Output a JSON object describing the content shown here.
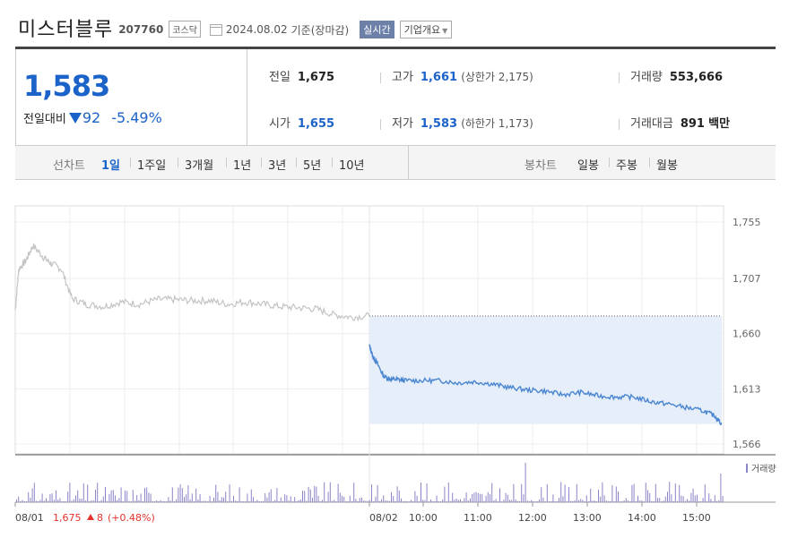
{
  "header": {
    "name": "미스터블루",
    "code": "207760",
    "market": "코스닥",
    "date": "2024.08.02",
    "basis": "기준(장마감)",
    "live_label": "실시간",
    "info_label": "기업개요"
  },
  "price": {
    "current": "1,583",
    "compare_label": "전일대비",
    "change": "92",
    "change_pct": "-5.49%"
  },
  "stats": {
    "prev": {
      "label": "전일",
      "value": "1,675"
    },
    "high": {
      "label": "고가",
      "value": "1,661",
      "sub": "(상한가 2,175)"
    },
    "volume": {
      "label": "거래량",
      "value": "553,666"
    },
    "open": {
      "label": "시가",
      "value": "1,655"
    },
    "low": {
      "label": "저가",
      "value": "1,583",
      "sub": "(하한가 1,173)"
    },
    "amount": {
      "label": "거래대금",
      "value": "891",
      "unit": "백만"
    }
  },
  "tabs": {
    "line_label": "선차트",
    "line_items": [
      "1일",
      "1주일",
      "3개월",
      "1년",
      "3년",
      "5년",
      "10년"
    ],
    "selected": "1일",
    "candle_label": "봉차트",
    "candle_items": [
      "일봉",
      "주봉",
      "월봉"
    ]
  },
  "colors": {
    "up": "#e6322c",
    "down": "#1c63c9",
    "prev_line": "#c4c4c4",
    "today_line": "#4a86d0",
    "fill": "#e6eefa",
    "volume": "#8b86c9"
  },
  "chart_data": {
    "type": "line",
    "y_ticks": [
      "1,755",
      "1,707",
      "1,660",
      "1,613",
      "1,566"
    ],
    "y_values": [
      1755,
      1707,
      1660,
      1613,
      1566
    ],
    "ylim": [
      1555,
      1765
    ],
    "x_labels": [
      "08/01",
      "08/02",
      "10:00",
      "11:00",
      "12:00",
      "13:00",
      "14:00",
      "15:00"
    ],
    "prev_close": 1675,
    "volume_label": "거래량",
    "prev_day_summary": {
      "date": "08/01",
      "close": "1,675",
      "change": "8",
      "pct": "(+0.48%)"
    },
    "series": [
      {
        "x": [
          0,
          0.01,
          0.03,
          0.05,
          0.08,
          0.1,
          0.13,
          0.16,
          0.2,
          0.25,
          0.3,
          0.35,
          0.4,
          0.45,
          0.5,
          0.55,
          0.6,
          0.65,
          0.7,
          0.75,
          0.8,
          0.85,
          0.9,
          0.95,
          1.0
        ],
        "y": [
          1680,
          1715,
          1722,
          1735,
          1725,
          1720,
          1715,
          1690,
          1685,
          1683,
          1687,
          1685,
          1689,
          1689,
          1688,
          1688,
          1685,
          1687,
          1685,
          1683,
          1682,
          1681,
          1676,
          1674,
          1675
        ]
      },
      {
        "x": [
          0,
          0.01,
          0.02,
          0.04,
          0.06,
          0.08,
          0.1,
          0.15,
          0.2,
          0.25,
          0.3,
          0.35,
          0.4,
          0.45,
          0.5,
          0.55,
          0.6,
          0.65,
          0.7,
          0.75,
          0.8,
          0.85,
          0.9,
          0.95,
          0.98,
          1.0
        ],
        "y": [
          1650,
          1640,
          1636,
          1624,
          1621,
          1621,
          1620,
          1620,
          1620,
          1618,
          1619,
          1617,
          1614,
          1612,
          1611,
          1608,
          1610,
          1607,
          1606,
          1606,
          1602,
          1600,
          1597,
          1594,
          1590,
          1583
        ]
      }
    ]
  }
}
